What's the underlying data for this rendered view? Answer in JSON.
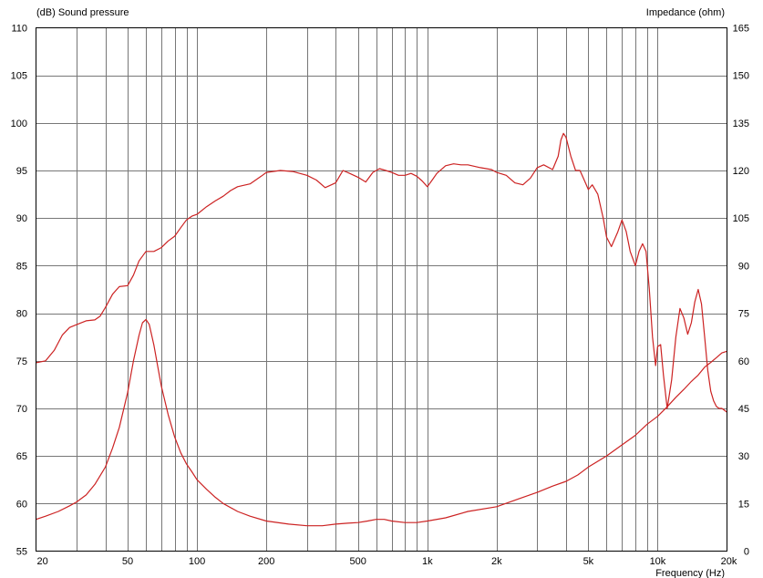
{
  "chart_data": {
    "type": "line",
    "left_axis_label": "(dB)  Sound pressure",
    "right_axis_label": "Impedance  (ohm)",
    "xlabel": "Frequency  (Hz)",
    "x_scale": "log",
    "xlim": [
      20,
      20000
    ],
    "ylim_left": [
      55,
      110
    ],
    "ylim_right": [
      0,
      165
    ],
    "grid": true,
    "y_left_ticks": [
      "110",
      "105",
      "100",
      "95",
      "90",
      "85",
      "80",
      "75",
      "70",
      "65",
      "60",
      "55"
    ],
    "y_right_ticks": [
      "165",
      "150",
      "135",
      "120",
      "105",
      "90",
      "75",
      "60",
      "45",
      "30",
      "15",
      "0"
    ],
    "x_tick_labels": [
      {
        "value": 20,
        "label": "20"
      },
      {
        "value": 50,
        "label": "50"
      },
      {
        "value": 100,
        "label": "100"
      },
      {
        "value": 200,
        "label": "200"
      },
      {
        "value": 500,
        "label": "500"
      },
      {
        "value": 1000,
        "label": "1k"
      },
      {
        "value": 2000,
        "label": "2k"
      },
      {
        "value": 5000,
        "label": "5k"
      },
      {
        "value": 10000,
        "label": "10k"
      },
      {
        "value": 20000,
        "label": "20k"
      }
    ],
    "line_color": "#cc2222",
    "series": [
      {
        "axis": "left",
        "x": [
          20,
          22,
          24,
          26,
          28,
          30,
          33,
          36,
          38,
          40,
          43,
          46,
          50,
          53,
          56,
          60,
          65,
          70,
          75,
          80,
          85,
          90,
          95,
          100,
          110,
          120,
          130,
          140,
          150,
          170,
          190,
          200,
          230,
          260,
          300,
          330,
          360,
          400,
          430,
          460,
          500,
          540,
          580,
          620,
          660,
          700,
          750,
          800,
          850,
          900,
          950,
          1000,
          1050,
          1100,
          1200,
          1300,
          1400,
          1500,
          1700,
          1900,
          2000,
          2200,
          2400,
          2600,
          2800,
          3000,
          3200,
          3500,
          3700,
          3800,
          3900,
          4000,
          4200,
          4400,
          4600,
          4800,
          5000,
          5200,
          5500,
          5800,
          6000,
          6300,
          6700,
          7000,
          7300,
          7600,
          8000,
          8300,
          8600,
          8900,
          9200,
          9500,
          9800,
          10000,
          10300,
          10600,
          11000,
          11500,
          12000,
          12500,
          13000,
          13500,
          14000,
          14500,
          15000,
          15500,
          16000,
          16500,
          17000,
          17500,
          18000,
          18500,
          19000,
          19500,
          20000
        ],
        "y": [
          74.8,
          75.0,
          76.1,
          77.7,
          78.5,
          78.8,
          79.2,
          79.3,
          79.7,
          80.6,
          82.0,
          82.8,
          82.9,
          84.0,
          85.5,
          86.5,
          86.5,
          86.9,
          87.6,
          88.1,
          89.0,
          89.8,
          90.2,
          90.4,
          91.2,
          91.8,
          92.3,
          92.9,
          93.3,
          93.6,
          94.4,
          94.8,
          95.0,
          94.9,
          94.5,
          94.0,
          93.2,
          93.7,
          95.0,
          94.7,
          94.3,
          93.8,
          94.8,
          95.2,
          95.0,
          94.8,
          94.5,
          94.5,
          94.7,
          94.4,
          93.9,
          93.3,
          94.0,
          94.7,
          95.5,
          95.7,
          95.6,
          95.6,
          95.3,
          95.1,
          94.8,
          94.5,
          93.7,
          93.5,
          94.2,
          95.3,
          95.6,
          95.1,
          96.5,
          98.2,
          98.9,
          98.5,
          96.5,
          95.0,
          95.0,
          94.0,
          93.0,
          93.5,
          92.5,
          90.0,
          88.0,
          87.0,
          88.5,
          89.8,
          88.6,
          86.5,
          85.0,
          86.5,
          87.3,
          86.5,
          82.5,
          77.5,
          74.5,
          76.5,
          76.7,
          73.5,
          70.0,
          73.0,
          77.5,
          80.5,
          79.5,
          77.8,
          79.0,
          81.2,
          82.5,
          81.0,
          77.5,
          74.0,
          71.8,
          70.8,
          70.2,
          70.0,
          70.0,
          69.8,
          69.6
        ]
      },
      {
        "axis": "right",
        "x": [
          20,
          22,
          25,
          28,
          30,
          33,
          36,
          40,
          43,
          46,
          50,
          53,
          56,
          58,
          60,
          62,
          65,
          68,
          70,
          75,
          80,
          85,
          90,
          95,
          100,
          110,
          120,
          130,
          150,
          170,
          200,
          250,
          300,
          350,
          400,
          450,
          500,
          550,
          600,
          650,
          700,
          800,
          900,
          1000,
          1200,
          1500,
          2000,
          2500,
          3000,
          3500,
          4000,
          4500,
          5000,
          6000,
          7000,
          8000,
          9000,
          10000,
          11000,
          12000,
          13000,
          14000,
          15000,
          16000,
          17000,
          18000,
          19000,
          20000
        ],
        "y": [
          10.0,
          11.0,
          12.5,
          14.3,
          15.5,
          17.7,
          21.0,
          26.5,
          32.5,
          39.0,
          50.0,
          60.0,
          68.0,
          72.0,
          73.0,
          71.5,
          65.0,
          57.0,
          52.0,
          43.0,
          36.0,
          31.0,
          27.5,
          25.0,
          22.5,
          19.5,
          17.0,
          15.0,
          12.5,
          11.0,
          9.5,
          8.5,
          8.0,
          8.0,
          8.5,
          8.8,
          9.0,
          9.5,
          10.0,
          10.0,
          9.5,
          9.0,
          9.0,
          9.5,
          10.5,
          12.5,
          14.0,
          16.5,
          18.5,
          20.5,
          22.0,
          24.0,
          26.5,
          30.0,
          33.5,
          36.5,
          40.0,
          42.5,
          45.5,
          48.5,
          51.0,
          53.5,
          55.5,
          58.0,
          59.5,
          61.0,
          62.5,
          63.0
        ]
      }
    ]
  }
}
